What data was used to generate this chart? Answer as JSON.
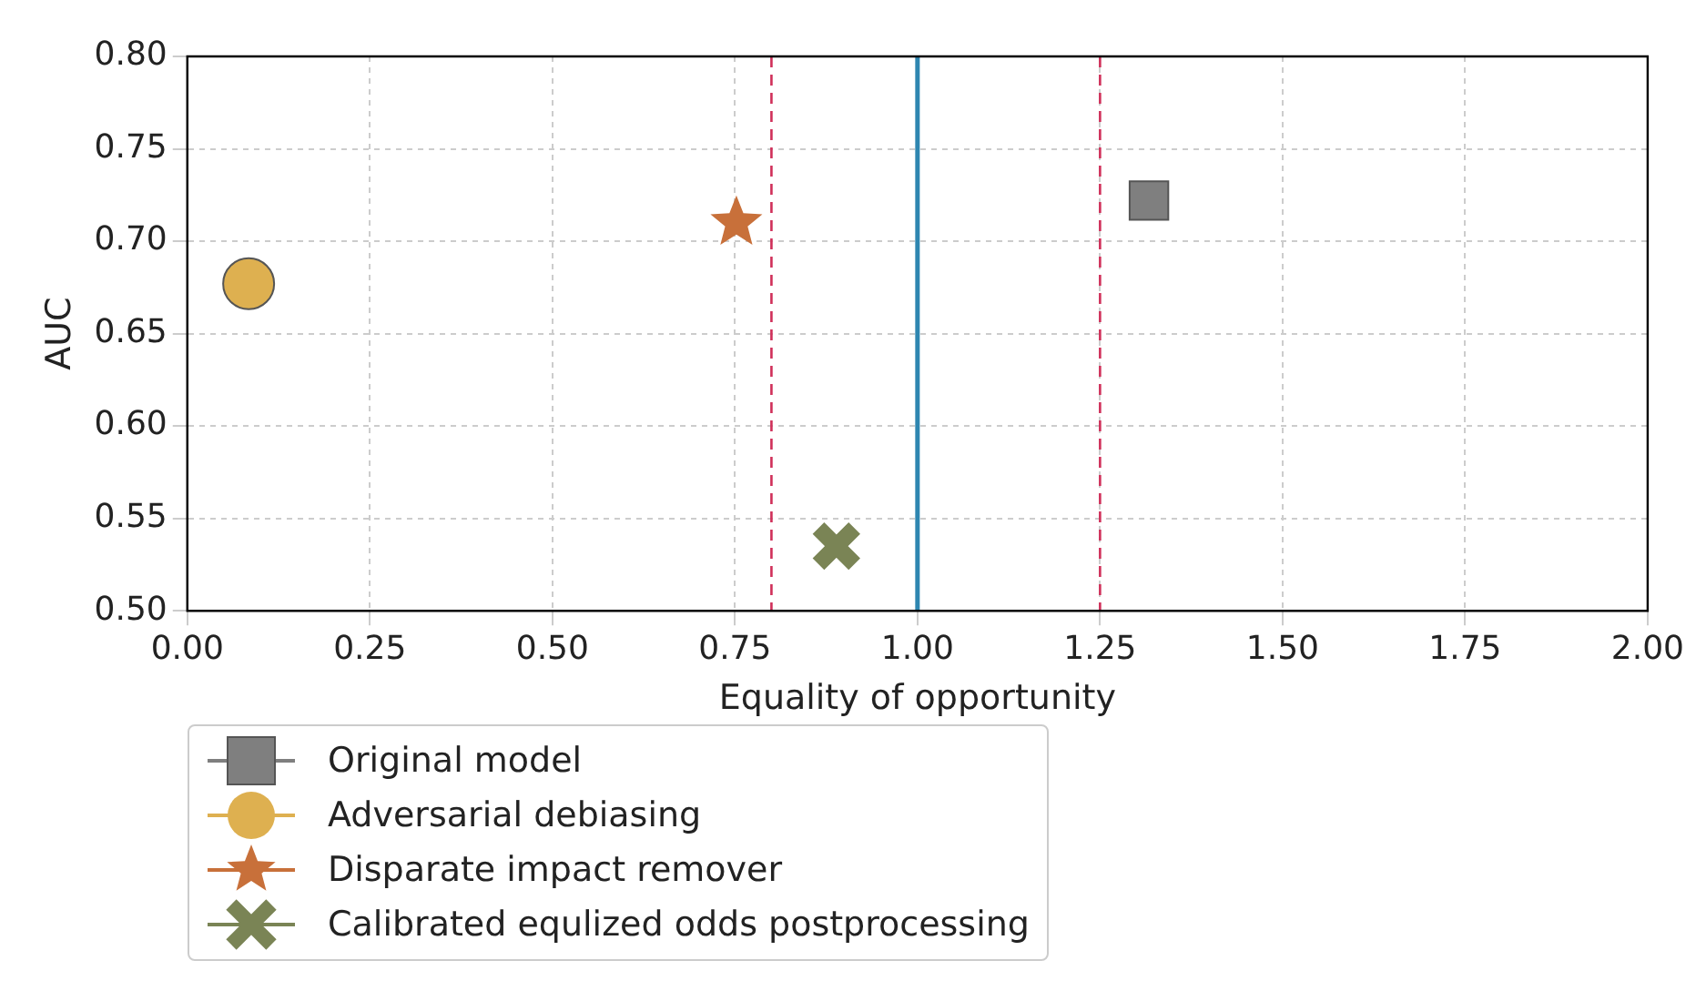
{
  "chart_data": {
    "type": "scatter",
    "xlabel": "Equality of opportunity",
    "ylabel": "AUC",
    "xlim": [
      0,
      2
    ],
    "xticks": [
      {
        "value": 0,
        "label": "0.00"
      },
      {
        "value": 0.25,
        "label": "0.25"
      },
      {
        "value": 0.5,
        "label": "0.50"
      },
      {
        "value": 0.75,
        "label": "0.75"
      },
      {
        "value": 1,
        "label": "1.00"
      },
      {
        "value": 1.25,
        "label": "1.25"
      },
      {
        "value": 1.5,
        "label": "1.50"
      },
      {
        "value": 1.75,
        "label": "1.75"
      },
      {
        "value": 2,
        "label": "2.00"
      }
    ],
    "ylim": [
      0.5,
      0.8
    ],
    "yticks": [
      {
        "value": 0.5,
        "label": "0.50"
      },
      {
        "value": 0.55,
        "label": "0.55"
      },
      {
        "value": 0.6,
        "label": "0.60"
      },
      {
        "value": 0.65,
        "label": "0.65"
      },
      {
        "value": 0.7,
        "label": "0.70"
      },
      {
        "value": 0.75,
        "label": "0.75"
      },
      {
        "value": 0.8,
        "label": "0.80"
      }
    ],
    "grid": true,
    "legend": "bottom",
    "series": [
      {
        "name": "Original model",
        "color": "#7f7f7f",
        "marker": "square",
        "x": [
          1.317
        ],
        "values": [
          0.722
        ]
      },
      {
        "name": "Adversarial debiasing",
        "color": "#deb050",
        "marker": "circle",
        "x": [
          0.084
        ],
        "values": [
          0.677
        ]
      },
      {
        "name": "Disparate impact remover",
        "color": "#c8703a",
        "marker": "star",
        "x": [
          0.752
        ],
        "values": [
          0.71
        ]
      },
      {
        "name": "Calibrated equlized odds postprocessing",
        "color": "#7a8455",
        "marker": "cross",
        "x": [
          0.889
        ],
        "values": [
          0.535
        ]
      }
    ],
    "ref_lines": [
      {
        "axis": "x",
        "value": 1,
        "color": "#2e86b0",
        "line_style": "solid"
      },
      {
        "axis": "x",
        "value": 0.8,
        "color": "#d0305a",
        "line_style": "dashed"
      },
      {
        "axis": "x",
        "value": 1.25,
        "color": "#d0305a",
        "line_style": "dashed"
      }
    ]
  }
}
